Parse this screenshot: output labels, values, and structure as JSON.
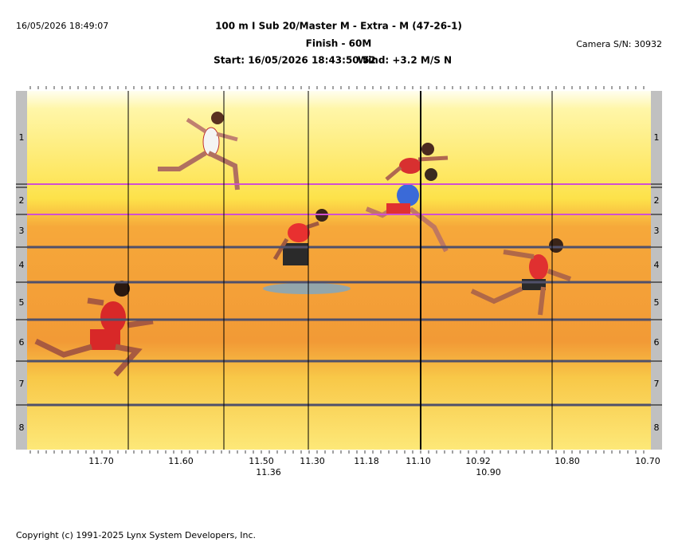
{
  "header": {
    "timestamp": "16/05/2026 18:49:07",
    "title": "100 m I Sub 20/Master M - Extra - M (47-26-1)",
    "subtitle": "Finish - 60M",
    "start": "Start: 16/05/2026 18:43:50.52",
    "wind": "Wind: +3.2 M/S N",
    "camera": "Camera S/N: 30932"
  },
  "lanes": [
    "1",
    "2",
    "3",
    "4",
    "5",
    "6",
    "7",
    "8"
  ],
  "time_axis": {
    "labels": [
      "11.70",
      "11.60",
      "11.50",
      "11.30",
      "11.18",
      "11.10",
      "10.92",
      "10.80",
      "10.70"
    ],
    "sub_labels": [
      "11.36",
      "10.90"
    ]
  },
  "footer": "Copyright (c) 1991-2025 Lynx System Developers, Inc."
}
